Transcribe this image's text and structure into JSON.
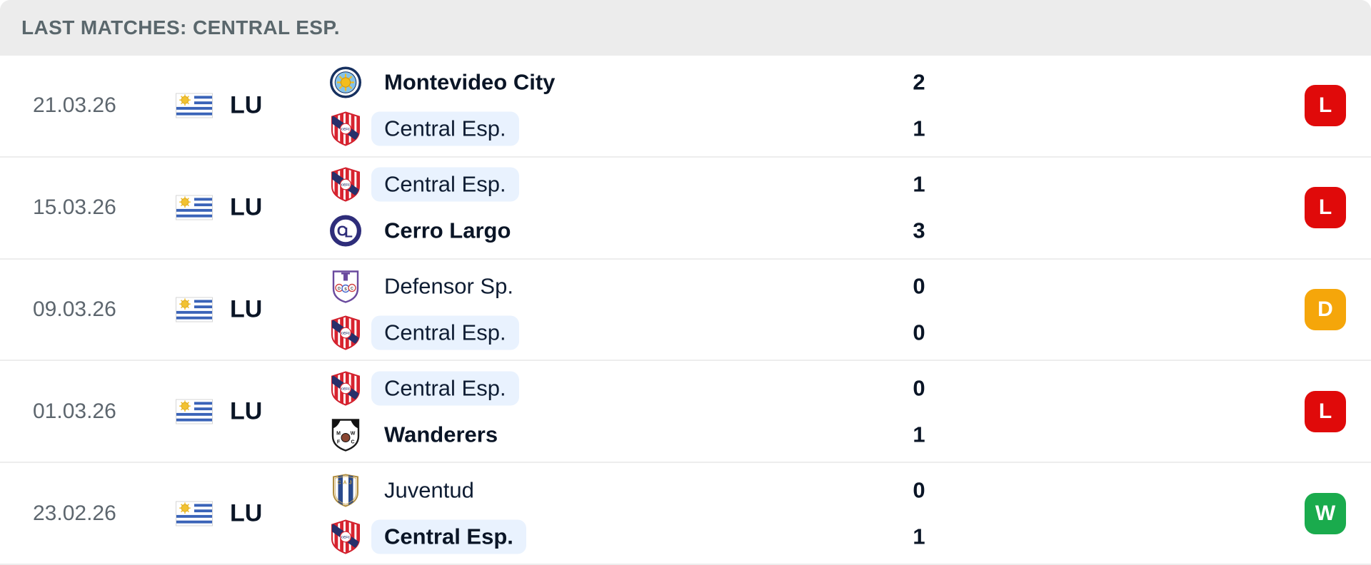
{
  "header": {
    "title": "LAST MATCHES: CENTRAL ESP."
  },
  "colors": {
    "win": "#1aab4d",
    "draw": "#f5a60a",
    "loss": "#e00a0a",
    "highlight": "#e9f2fe"
  },
  "matches": [
    {
      "date": "21.03.26",
      "league": "LU",
      "country": "Uruguay",
      "home": {
        "name": "Montevideo City",
        "logo": "montevideo-city",
        "score": "2",
        "bold": true,
        "highlight": false
      },
      "away": {
        "name": "Central Esp.",
        "logo": "central-esp",
        "score": "1",
        "bold": false,
        "highlight": true
      },
      "result": {
        "letter": "L",
        "type": "loss"
      }
    },
    {
      "date": "15.03.26",
      "league": "LU",
      "country": "Uruguay",
      "home": {
        "name": "Central Esp.",
        "logo": "central-esp",
        "score": "1",
        "bold": false,
        "highlight": true
      },
      "away": {
        "name": "Cerro Largo",
        "logo": "cerro-largo",
        "score": "3",
        "bold": true,
        "highlight": false
      },
      "result": {
        "letter": "L",
        "type": "loss"
      }
    },
    {
      "date": "09.03.26",
      "league": "LU",
      "country": "Uruguay",
      "home": {
        "name": "Defensor Sp.",
        "logo": "defensor",
        "score": "0",
        "bold": false,
        "highlight": false
      },
      "away": {
        "name": "Central Esp.",
        "logo": "central-esp",
        "score": "0",
        "bold": false,
        "highlight": true
      },
      "result": {
        "letter": "D",
        "type": "draw"
      }
    },
    {
      "date": "01.03.26",
      "league": "LU",
      "country": "Uruguay",
      "home": {
        "name": "Central Esp.",
        "logo": "central-esp",
        "score": "0",
        "bold": false,
        "highlight": true
      },
      "away": {
        "name": "Wanderers",
        "logo": "wanderers",
        "score": "1",
        "bold": true,
        "highlight": false
      },
      "result": {
        "letter": "L",
        "type": "loss"
      }
    },
    {
      "date": "23.02.26",
      "league": "LU",
      "country": "Uruguay",
      "home": {
        "name": "Juventud",
        "logo": "juventud",
        "score": "0",
        "bold": false,
        "highlight": false
      },
      "away": {
        "name": "Central Esp.",
        "logo": "central-esp",
        "score": "1",
        "bold": true,
        "highlight": true
      },
      "result": {
        "letter": "W",
        "type": "win"
      }
    }
  ]
}
